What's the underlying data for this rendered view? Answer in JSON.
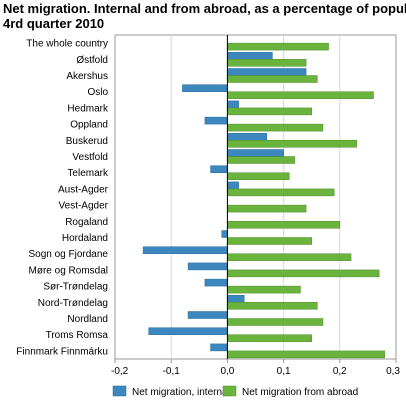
{
  "chart_data": {
    "type": "bar",
    "orientation": "horizontal",
    "title_lines": [
      "Net migration. Internal and from abroad, as a percentage of population",
      "4rd quarter 2010"
    ],
    "categories": [
      "The whole country",
      "Østfold",
      "Akershus",
      "Oslo",
      "Hedmark",
      "Oppland",
      "Buskerud",
      "Vestfold",
      "Telemark",
      "Aust-Agder",
      "Vest-Agder",
      "Rogaland",
      "Hordaland",
      "Sogn og Fjordane",
      "Møre og Romsdal",
      "Sør-Trøndelag",
      "Nord-Trøndelag",
      "Nordland",
      "Troms Romsa",
      "Finnmark Finnmárku"
    ],
    "series": [
      {
        "name": "Net migration, internal",
        "color": "#3b87be",
        "values": [
          0,
          0.08,
          0.14,
          -0.08,
          0.02,
          -0.04,
          0.07,
          0.1,
          -0.03,
          0.02,
          0,
          0,
          -0.01,
          -0.15,
          -0.07,
          -0.04,
          0.03,
          -0.07,
          -0.14,
          -0.03
        ]
      },
      {
        "name": "Net migration from abroad",
        "color": "#6ab43e",
        "values": [
          0.18,
          0.14,
          0.16,
          0.26,
          0.15,
          0.17,
          0.23,
          0.12,
          0.11,
          0.19,
          0.14,
          0.2,
          0.15,
          0.22,
          0.27,
          0.13,
          0.16,
          0.17,
          0.15,
          0.28
        ]
      }
    ],
    "x_ticks": [
      "-0,2",
      "-0,1",
      "0,0",
      "0,1",
      "0,2",
      "0,3"
    ],
    "xlim": [
      -0.2,
      0.3
    ],
    "grid": "vertical",
    "legend_position": "bottom"
  }
}
